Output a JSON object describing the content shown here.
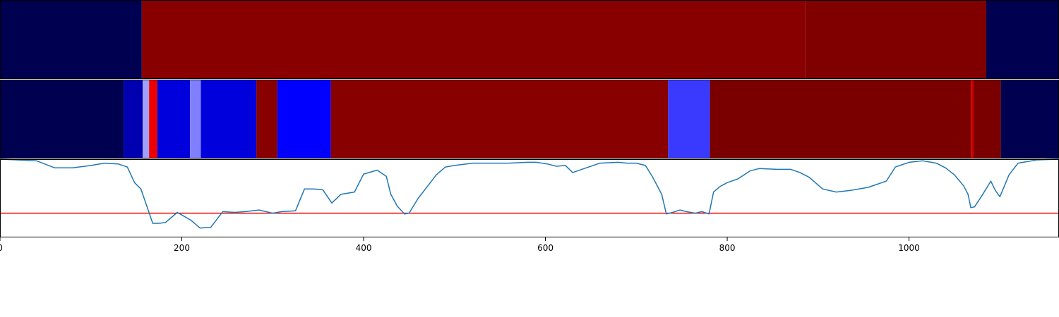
{
  "chart_data": [
    {
      "type": "heatmap",
      "xlim": [
        0,
        1165
      ],
      "segments": [
        {
          "start": 0,
          "end": 156,
          "color": "#000050"
        },
        {
          "start": 156,
          "end": 886,
          "color": "#880000"
        },
        {
          "start": 886,
          "end": 1085,
          "color": "#800000"
        },
        {
          "start": 1085,
          "end": 1165,
          "color": "#000050"
        }
      ]
    },
    {
      "type": "heatmap",
      "xlim": [
        0,
        1165
      ],
      "segments": [
        {
          "start": 0,
          "end": 136,
          "color": "#000050"
        },
        {
          "start": 136,
          "end": 157,
          "color": "#0000b0"
        },
        {
          "start": 157,
          "end": 164,
          "color": "#a0a0ff"
        },
        {
          "start": 164,
          "end": 173,
          "color": "#ee0000"
        },
        {
          "start": 173,
          "end": 209,
          "color": "#0000dd"
        },
        {
          "start": 209,
          "end": 221,
          "color": "#8080ff"
        },
        {
          "start": 221,
          "end": 282,
          "color": "#0000dd"
        },
        {
          "start": 282,
          "end": 305,
          "color": "#880000"
        },
        {
          "start": 305,
          "end": 364,
          "color": "#0000ff"
        },
        {
          "start": 364,
          "end": 735,
          "color": "#880000"
        },
        {
          "start": 735,
          "end": 781,
          "color": "#3a3aff"
        },
        {
          "start": 781,
          "end": 1068,
          "color": "#7a0000"
        },
        {
          "start": 1068,
          "end": 1071,
          "color": "#cc0000"
        },
        {
          "start": 1071,
          "end": 1101,
          "color": "#7a0000"
        },
        {
          "start": 1101,
          "end": 1165,
          "color": "#000050"
        }
      ]
    },
    {
      "type": "line",
      "xlim": [
        0,
        1165
      ],
      "ylim": [
        0,
        1
      ],
      "x_ticks": [
        0,
        200,
        400,
        600,
        800,
        1000
      ],
      "x_tick_labels": [
        "0",
        "200",
        "400",
        "600",
        "800",
        "1000"
      ],
      "threshold": {
        "y": 0.31,
        "color": "#ff0000"
      },
      "series": [
        {
          "color": "#1f77b4",
          "x": [
            0,
            40,
            60,
            80,
            100,
            115,
            130,
            140,
            148,
            155,
            168,
            175,
            182,
            195,
            210,
            220,
            232,
            245,
            258,
            270,
            285,
            300,
            310,
            325,
            335,
            345,
            355,
            365,
            375,
            390,
            400,
            415,
            425,
            430,
            437,
            445,
            450,
            460,
            470,
            480,
            490,
            500,
            520,
            560,
            580,
            590,
            602,
            612,
            622,
            630,
            640,
            660,
            680,
            690,
            700,
            710,
            718,
            728,
            733,
            740,
            748,
            755,
            765,
            772,
            780,
            785,
            792,
            800,
            812,
            825,
            835,
            855,
            870,
            880,
            890,
            905,
            920,
            935,
            955,
            975,
            985,
            1000,
            1015,
            1030,
            1040,
            1050,
            1060,
            1065,
            1068,
            1072,
            1080,
            1090,
            1095,
            1100,
            1110,
            1120,
            1140,
            1165
          ],
          "y": [
            1.0,
            0.98,
            0.89,
            0.89,
            0.92,
            0.95,
            0.94,
            0.9,
            0.7,
            0.62,
            0.18,
            0.18,
            0.19,
            0.32,
            0.22,
            0.12,
            0.13,
            0.33,
            0.32,
            0.33,
            0.35,
            0.31,
            0.33,
            0.34,
            0.62,
            0.62,
            0.61,
            0.44,
            0.55,
            0.58,
            0.81,
            0.86,
            0.78,
            0.55,
            0.4,
            0.3,
            0.31,
            0.5,
            0.65,
            0.8,
            0.9,
            0.92,
            0.95,
            0.95,
            0.96,
            0.96,
            0.94,
            0.91,
            0.92,
            0.83,
            0.87,
            0.95,
            0.96,
            0.95,
            0.95,
            0.92,
            0.77,
            0.55,
            0.3,
            0.32,
            0.35,
            0.33,
            0.31,
            0.33,
            0.3,
            0.58,
            0.65,
            0.7,
            0.75,
            0.85,
            0.88,
            0.87,
            0.87,
            0.83,
            0.77,
            0.62,
            0.58,
            0.6,
            0.64,
            0.72,
            0.9,
            0.96,
            0.98,
            0.95,
            0.89,
            0.8,
            0.66,
            0.55,
            0.38,
            0.39,
            0.53,
            0.72,
            0.6,
            0.52,
            0.8,
            0.95,
            0.99,
            1.0
          ]
        }
      ]
    }
  ]
}
